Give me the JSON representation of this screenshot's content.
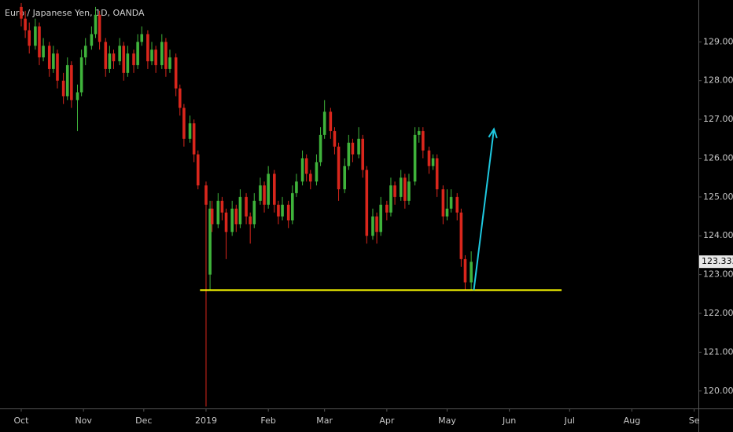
{
  "chart_data": {
    "type": "candlestick",
    "title": "Euro / Japanese Yen, 1D, OANDA",
    "up_color": "#3fb33b",
    "down_color": "#d9261c",
    "x": [
      0,
      2,
      4,
      7,
      9,
      11,
      14,
      16,
      18,
      21,
      23,
      25,
      28,
      30,
      32,
      35,
      37,
      39,
      42,
      44,
      46,
      49,
      51,
      53,
      56,
      58,
      60,
      63,
      65,
      67,
      70,
      72,
      74,
      77,
      79,
      81,
      84,
      86,
      88,
      92,
      94,
      95,
      98,
      100,
      102,
      105,
      107,
      109,
      112,
      114,
      116,
      119,
      121,
      123,
      126,
      128,
      130,
      133,
      135,
      137,
      140,
      142,
      144,
      147,
      149,
      151,
      154,
      156,
      158,
      161,
      163,
      165,
      168,
      170,
      172,
      175,
      177,
      179,
      182,
      184,
      186,
      189,
      191,
      193,
      196,
      198,
      200,
      203,
      205,
      207,
      210,
      212,
      214,
      217,
      219,
      221,
      224
    ],
    "open": [
      129.9,
      129.6,
      129.3,
      128.9,
      129.4,
      128.6,
      128.9,
      128.3,
      128.7,
      128.0,
      127.6,
      128.4,
      127.5,
      127.7,
      128.6,
      128.9,
      129.2,
      129.7,
      129.0,
      128.3,
      128.7,
      128.5,
      128.9,
      128.2,
      128.7,
      128.4,
      129.0,
      129.2,
      128.5,
      128.8,
      128.4,
      129.0,
      128.3,
      128.6,
      127.8,
      127.3,
      126.5,
      126.9,
      126.1,
      125.3,
      123.0,
      124.7,
      124.3,
      124.9,
      124.6,
      124.1,
      124.7,
      124.3,
      125.0,
      124.5,
      124.3,
      124.9,
      125.3,
      124.8,
      125.6,
      124.8,
      124.5,
      124.8,
      124.4,
      125.1,
      125.4,
      126.0,
      125.6,
      125.4,
      125.9,
      126.6,
      127.2,
      126.7,
      126.3,
      125.2,
      125.8,
      126.4,
      126.1,
      126.5,
      125.7,
      124.0,
      124.5,
      124.1,
      124.8,
      124.6,
      125.3,
      125.0,
      125.5,
      124.9,
      125.4,
      126.6,
      126.7,
      126.2,
      125.8,
      126.0,
      125.2,
      124.5,
      124.7,
      125.0,
      124.6,
      123.4,
      122.8
    ],
    "high": [
      130.0,
      129.8,
      129.5,
      129.6,
      129.5,
      129.1,
      129.0,
      128.9,
      128.8,
      128.2,
      128.6,
      128.5,
      127.9,
      128.8,
      129.1,
      129.4,
      129.9,
      129.8,
      129.1,
      128.9,
      128.8,
      129.1,
      129.0,
      128.9,
      128.8,
      129.2,
      129.4,
      129.3,
      129.0,
      128.9,
      129.2,
      129.1,
      128.8,
      128.7,
      127.9,
      127.4,
      127.1,
      127.0,
      126.2,
      125.4,
      124.9,
      124.9,
      125.1,
      125.0,
      124.7,
      124.9,
      124.8,
      125.2,
      125.1,
      124.6,
      125.1,
      125.5,
      125.4,
      125.8,
      125.7,
      124.9,
      125.0,
      124.9,
      125.3,
      125.6,
      126.2,
      126.1,
      125.7,
      126.1,
      126.8,
      127.5,
      127.3,
      126.8,
      126.4,
      126.0,
      126.6,
      126.5,
      126.8,
      126.6,
      125.8,
      124.7,
      124.6,
      125.0,
      124.9,
      125.5,
      125.4,
      125.7,
      125.6,
      125.6,
      126.8,
      126.8,
      126.8,
      126.3,
      126.1,
      126.1,
      125.3,
      125.2,
      125.2,
      125.1,
      124.7,
      123.5,
      123.6
    ],
    "low": [
      129.4,
      129.1,
      128.7,
      128.8,
      128.4,
      128.5,
      128.1,
      128.2,
      127.8,
      127.4,
      127.5,
      127.3,
      126.7,
      127.6,
      128.4,
      128.8,
      129.1,
      128.8,
      128.1,
      128.2,
      128.3,
      128.4,
      128.0,
      128.1,
      128.2,
      128.3,
      128.9,
      128.3,
      128.4,
      128.2,
      128.3,
      128.1,
      128.2,
      127.6,
      127.1,
      126.3,
      126.4,
      125.9,
      125.2,
      119.6,
      122.6,
      124.1,
      124.2,
      124.4,
      123.4,
      124.0,
      124.1,
      124.2,
      124.3,
      123.8,
      124.2,
      124.8,
      124.6,
      124.7,
      124.6,
      124.3,
      124.4,
      124.2,
      124.3,
      125.0,
      125.3,
      125.4,
      125.2,
      125.3,
      125.8,
      126.5,
      126.5,
      126.1,
      124.9,
      125.1,
      125.7,
      125.9,
      126.0,
      125.5,
      123.8,
      123.9,
      123.8,
      124.0,
      124.4,
      124.5,
      124.8,
      124.9,
      124.7,
      124.8,
      125.3,
      126.4,
      126.0,
      125.6,
      125.7,
      125.0,
      124.3,
      124.4,
      124.6,
      124.4,
      123.2,
      122.6,
      122.6
    ],
    "close": [
      129.6,
      129.3,
      128.9,
      129.4,
      128.6,
      128.9,
      128.3,
      128.7,
      128.0,
      127.6,
      128.4,
      127.5,
      127.7,
      128.6,
      128.9,
      129.2,
      129.7,
      129.0,
      128.3,
      128.7,
      128.5,
      128.9,
      128.2,
      128.7,
      128.4,
      129.0,
      129.2,
      128.5,
      128.8,
      128.4,
      129.0,
      128.3,
      128.6,
      127.8,
      127.3,
      126.5,
      126.9,
      126.1,
      125.3,
      124.8,
      124.7,
      124.3,
      124.9,
      124.6,
      124.1,
      124.7,
      124.3,
      125.0,
      124.5,
      124.3,
      124.9,
      125.3,
      124.8,
      125.6,
      124.8,
      124.5,
      124.8,
      124.4,
      125.1,
      125.4,
      126.0,
      125.6,
      125.4,
      125.9,
      126.6,
      127.2,
      126.7,
      126.3,
      125.2,
      125.8,
      126.4,
      126.1,
      126.5,
      125.7,
      124.0,
      124.5,
      124.1,
      124.8,
      124.6,
      125.3,
      125.0,
      125.5,
      124.9,
      125.4,
      126.6,
      126.7,
      126.2,
      125.8,
      126.0,
      125.2,
      124.5,
      124.7,
      125.0,
      124.6,
      123.4,
      122.8,
      123.33
    ],
    "last_price": 123.333,
    "xlim": [
      -10.57,
      337.1
    ],
    "ylim": [
      119.55,
      130.08
    ],
    "xticks": [
      {
        "value": 0,
        "label": "Oct"
      },
      {
        "value": 31,
        "label": "Nov"
      },
      {
        "value": 61,
        "label": "Dec"
      },
      {
        "value": 92,
        "label": "2019"
      },
      {
        "value": 123,
        "label": "Feb"
      },
      {
        "value": 151,
        "label": "Mar"
      },
      {
        "value": 182,
        "label": "Apr"
      },
      {
        "value": 212,
        "label": "May"
      },
      {
        "value": 243,
        "label": "Jun"
      },
      {
        "value": 273,
        "label": "Jul"
      },
      {
        "value": 304,
        "label": "Aug"
      },
      {
        "value": 335,
        "label": "Se"
      }
    ],
    "yticks": [
      {
        "value": 120,
        "label": "120.000"
      },
      {
        "value": 121,
        "label": "121.000"
      },
      {
        "value": 122,
        "label": "122.000"
      },
      {
        "value": 123,
        "label": "123.000"
      },
      {
        "value": 124,
        "label": "124.000"
      },
      {
        "value": 125,
        "label": "125.000"
      },
      {
        "value": 126,
        "label": "126.000"
      },
      {
        "value": 127,
        "label": "127.000"
      },
      {
        "value": 128,
        "label": "128.000"
      },
      {
        "value": 129,
        "label": "129.000"
      }
    ],
    "support": {
      "value": 122.6,
      "x": [
        89,
        269
      ],
      "color": "#ffff00"
    },
    "arrow": {
      "x": [
        225.3,
        235.3
      ],
      "y": [
        122.6,
        126.75
      ],
      "color": "#1ec8e0"
    }
  }
}
